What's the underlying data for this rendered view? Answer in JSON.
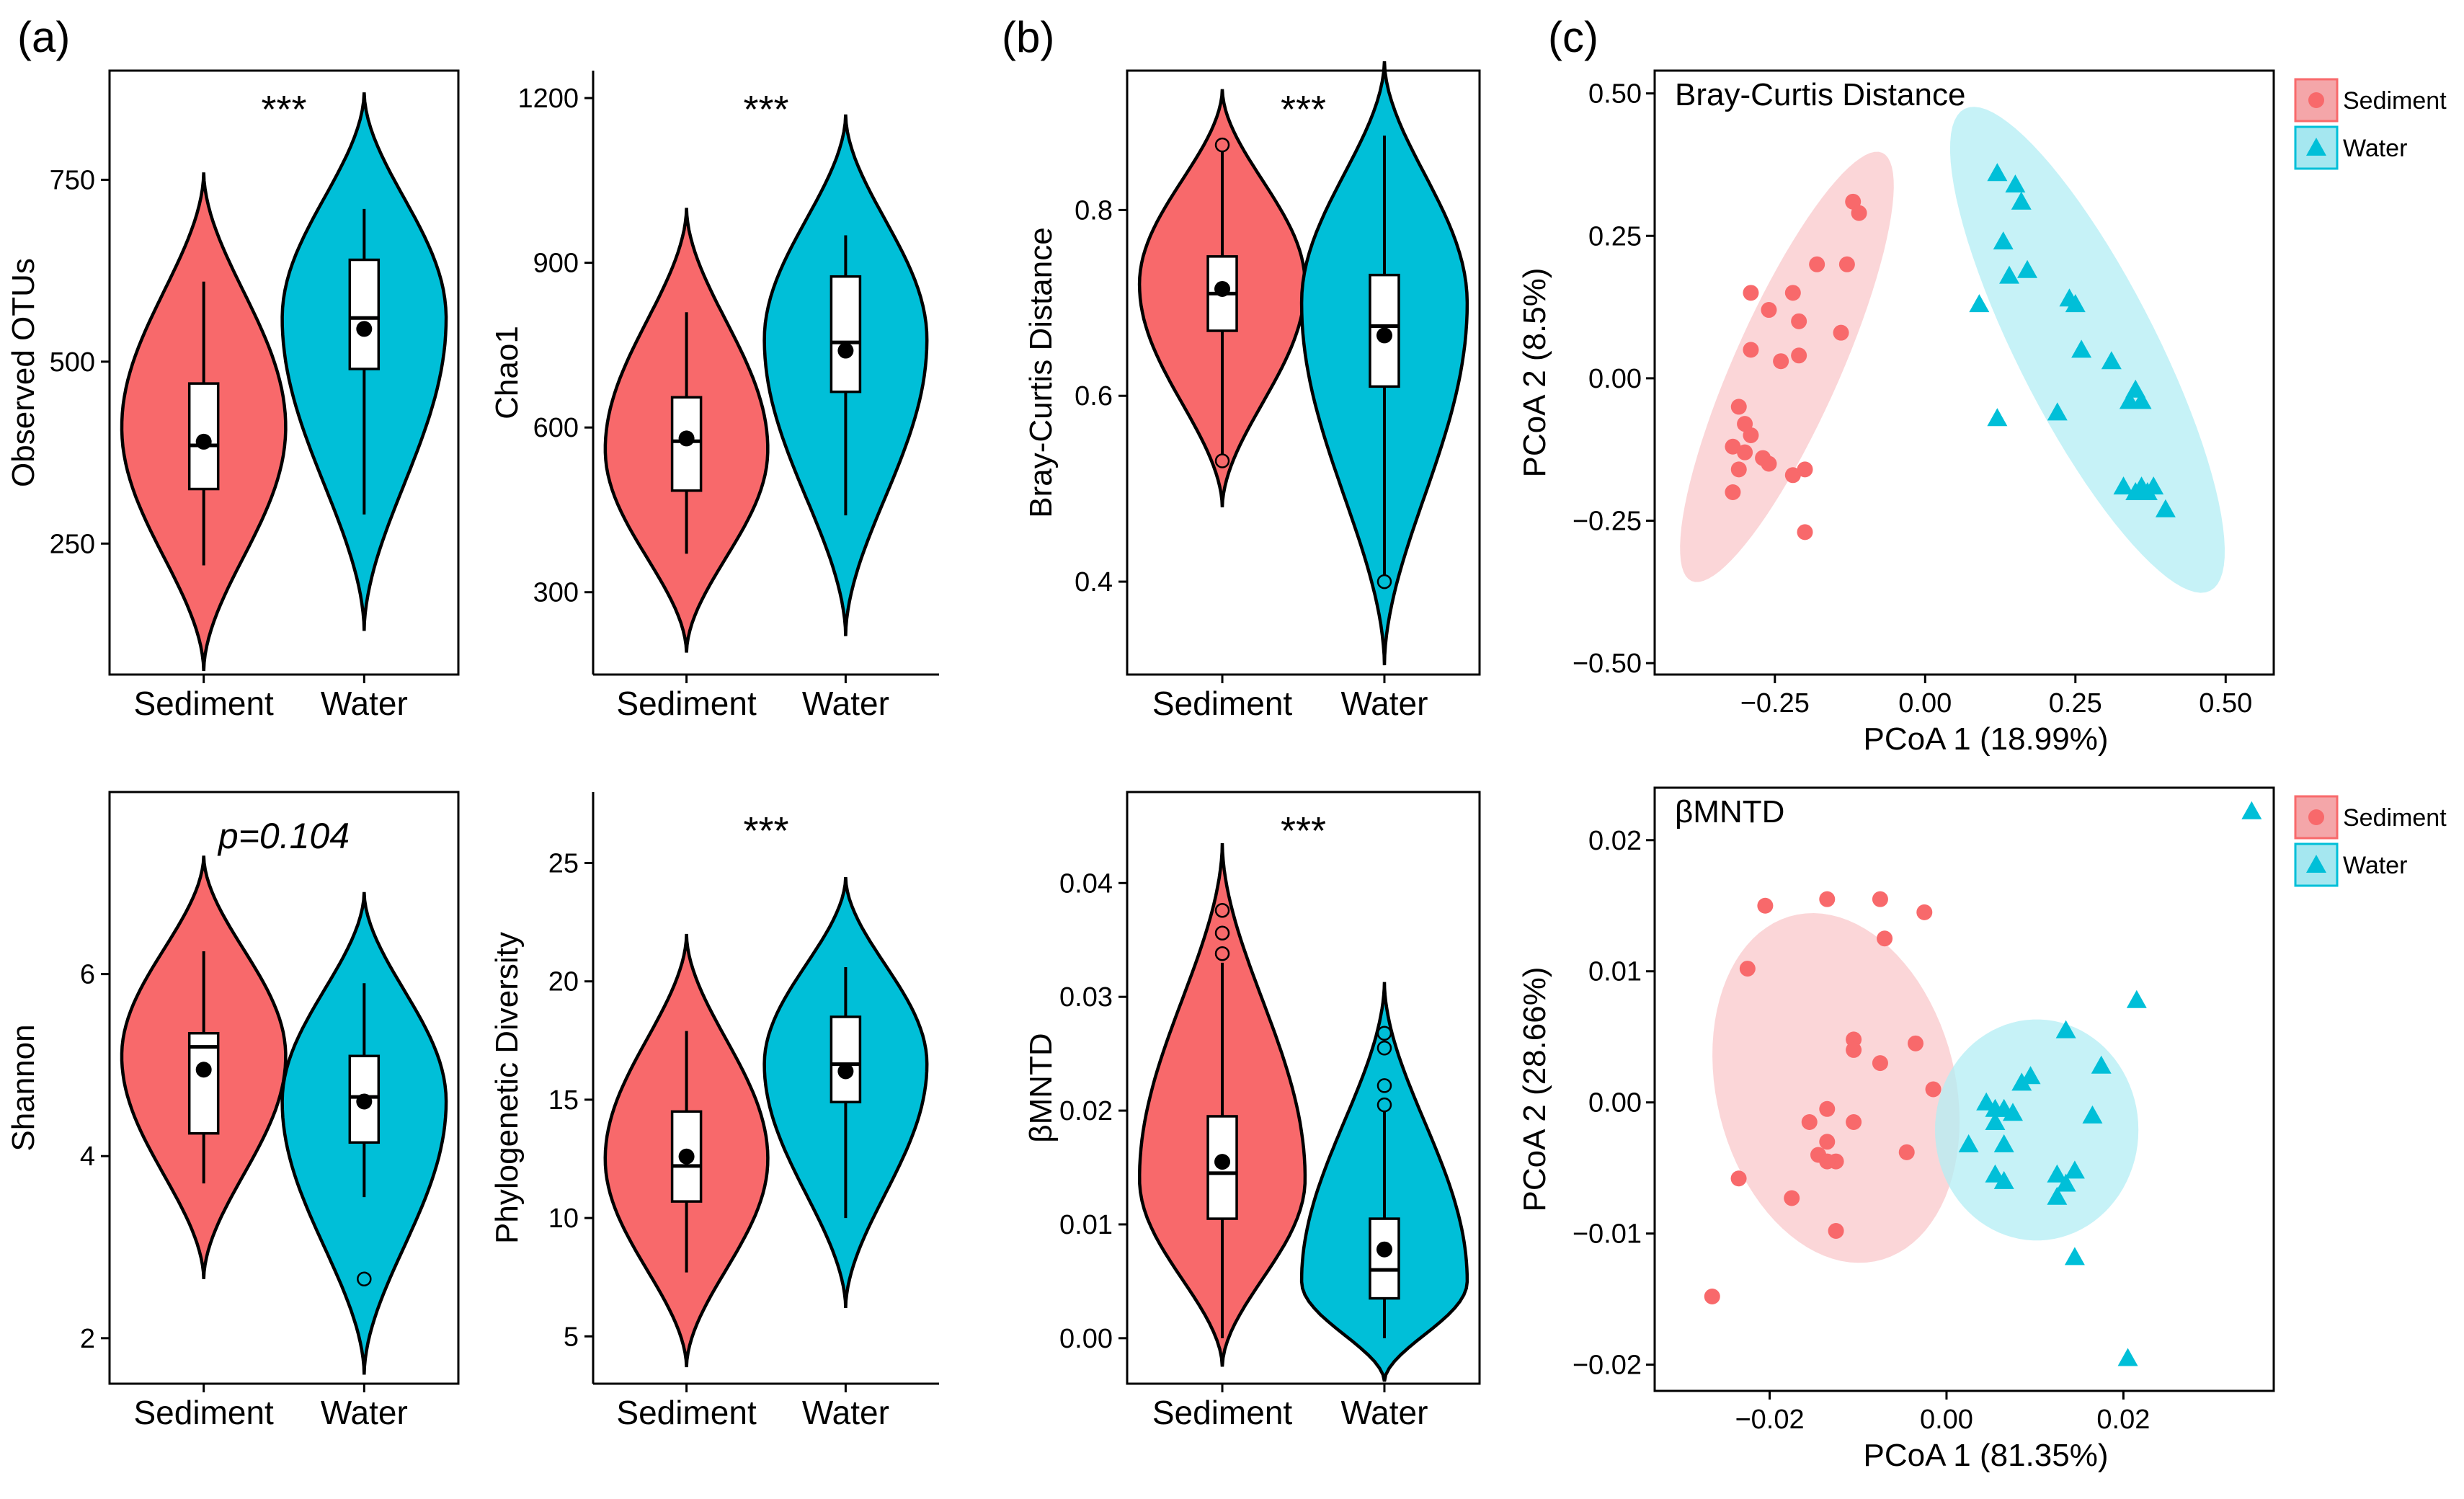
{
  "colors": {
    "sediment": "#F8696B",
    "water": "#00BFD8",
    "sediment_fill": "#F4A6A9",
    "water_fill": "#A5E7F0",
    "sediment_ellipse": "#FAC8CB",
    "water_ellipse": "#B3EDF4"
  },
  "panel_labels": {
    "a": "(a)",
    "b": "(b)",
    "c": "(c)"
  },
  "chart_data": [
    {
      "id": "observed-otus",
      "type": "violin",
      "ylabel": "Observed OTUs",
      "categories": [
        "Sediment",
        "Water"
      ],
      "ylim": [
        70,
        900
      ],
      "yticks": [
        250,
        500,
        750
      ],
      "annotation": "***",
      "series": [
        {
          "name": "Sediment",
          "violin_min": 75,
          "violin_max": 760,
          "violin_peak": 410,
          "q1": 325,
          "median": 385,
          "q3": 470,
          "mean": 390,
          "whisker_low": 220,
          "whisker_high": 610,
          "outliers": []
        },
        {
          "name": "Water",
          "violin_min": 130,
          "violin_max": 870,
          "violin_peak": 560,
          "q1": 490,
          "median": 560,
          "q3": 640,
          "mean": 545,
          "whisker_low": 290,
          "whisker_high": 710,
          "outliers": []
        }
      ]
    },
    {
      "id": "chao1",
      "type": "violin",
      "ylabel": "Chao1",
      "categories": [
        "Sediment",
        "Water"
      ],
      "ylim": [
        150,
        1250
      ],
      "yticks": [
        300,
        600,
        900,
        1200
      ],
      "annotation": "***",
      "series": [
        {
          "name": "Sediment",
          "violin_min": 190,
          "violin_max": 1000,
          "violin_peak": 560,
          "q1": 485,
          "median": 575,
          "q3": 655,
          "mean": 580,
          "whisker_low": 370,
          "whisker_high": 810,
          "outliers": []
        },
        {
          "name": "Water",
          "violin_min": 220,
          "violin_max": 1170,
          "violin_peak": 760,
          "q1": 665,
          "median": 755,
          "q3": 875,
          "mean": 740,
          "whisker_low": 440,
          "whisker_high": 950,
          "outliers": []
        }
      ]
    },
    {
      "id": "shannon",
      "type": "violin",
      "ylabel": "Shannon",
      "categories": [
        "Sediment",
        "Water"
      ],
      "ylim": [
        1.5,
        8
      ],
      "yticks": [
        2,
        4,
        6
      ],
      "annotation": "p=0.104",
      "series": [
        {
          "name": "Sediment",
          "violin_min": 2.65,
          "violin_max": 7.3,
          "violin_peak": 5.1,
          "q1": 4.25,
          "median": 5.2,
          "q3": 5.35,
          "mean": 4.95,
          "whisker_low": 3.7,
          "whisker_high": 6.25,
          "outliers": []
        },
        {
          "name": "Water",
          "violin_min": 1.6,
          "violin_max": 6.9,
          "violin_peak": 4.6,
          "q1": 4.15,
          "median": 4.65,
          "q3": 5.1,
          "mean": 4.6,
          "whisker_low": 3.55,
          "whisker_high": 5.9,
          "outliers": [
            2.65
          ]
        }
      ]
    },
    {
      "id": "phylogenetic-diversity",
      "type": "violin",
      "ylabel": "Phylogenetic Diversity",
      "categories": [
        "Sediment",
        "Water"
      ],
      "ylim": [
        3,
        28
      ],
      "yticks": [
        5,
        10,
        15,
        20,
        25
      ],
      "annotation": "***",
      "series": [
        {
          "name": "Sediment",
          "violin_min": 3.7,
          "violin_max": 22,
          "violin_peak": 12.5,
          "q1": 10.7,
          "median": 12.2,
          "q3": 14.5,
          "mean": 12.6,
          "whisker_low": 7.7,
          "whisker_high": 17.9,
          "outliers": []
        },
        {
          "name": "Water",
          "violin_min": 6.2,
          "violin_max": 24.4,
          "violin_peak": 16.5,
          "q1": 14.9,
          "median": 16.5,
          "q3": 18.5,
          "mean": 16.2,
          "whisker_low": 10,
          "whisker_high": 20.6,
          "outliers": []
        }
      ]
    },
    {
      "id": "bray-curtis-violin",
      "type": "violin",
      "ylabel": "Bray-Curtis Distance",
      "categories": [
        "Sediment",
        "Water"
      ],
      "ylim": [
        0.3,
        0.95
      ],
      "yticks": [
        0.4,
        0.6,
        0.8
      ],
      "annotation": "***",
      "series": [
        {
          "name": "Sediment",
          "violin_min": 0.48,
          "violin_max": 0.93,
          "violin_peak": 0.72,
          "q1": 0.67,
          "median": 0.71,
          "q3": 0.75,
          "mean": 0.715,
          "whisker_low": 0.535,
          "whisker_high": 0.87,
          "outliers": [
            0.53,
            0.87
          ]
        },
        {
          "name": "Water",
          "violin_min": 0.31,
          "violin_max": 0.96,
          "violin_peak": 0.7,
          "q1": 0.61,
          "median": 0.675,
          "q3": 0.73,
          "mean": 0.665,
          "whisker_low": 0.4,
          "whisker_high": 0.88,
          "outliers": [
            0.4
          ]
        }
      ]
    },
    {
      "id": "bmntd-violin",
      "type": "violin",
      "ylabel": "βMNTD",
      "categories": [
        "Sediment",
        "Water"
      ],
      "ylim": [
        -0.004,
        0.048
      ],
      "yticks": [
        0,
        0.01,
        0.02,
        0.03,
        0.04
      ],
      "ytick_labels": [
        "0.00",
        "0.01",
        "0.02",
        "0.03",
        "0.04"
      ],
      "annotation": "***",
      "series": [
        {
          "name": "Sediment",
          "violin_min": -0.0025,
          "violin_max": 0.0435,
          "violin_peak": 0.014,
          "q1": 0.0105,
          "median": 0.0145,
          "q3": 0.0195,
          "mean": 0.0155,
          "whisker_low": 0,
          "whisker_high": 0.033,
          "outliers": [
            0.0338,
            0.0356,
            0.0376
          ]
        },
        {
          "name": "Water",
          "violin_min": -0.0038,
          "violin_max": 0.0313,
          "violin_peak": 0.005,
          "q1": 0.0035,
          "median": 0.006,
          "q3": 0.0105,
          "mean": 0.0078,
          "whisker_low": 0,
          "whisker_high": 0.02,
          "outliers": [
            0.0205,
            0.0222,
            0.0255,
            0.0268
          ]
        }
      ]
    },
    {
      "id": "pcoa-bray-curtis",
      "type": "scatter",
      "title": "Bray-Curtis Distance",
      "xlabel": "PCoA 1 (18.99%)",
      "ylabel": "PCoA 2 (8.5%)",
      "xlim": [
        -0.45,
        0.58
      ],
      "ylim": [
        -0.52,
        0.54
      ],
      "xticks": [
        -0.25,
        0,
        0.25,
        0.5
      ],
      "xtick_labels": [
        "−0.25",
        "0.00",
        "0.25",
        "0.50"
      ],
      "yticks": [
        -0.5,
        -0.25,
        0,
        0.25,
        0.5
      ],
      "ytick_labels": [
        "−0.50",
        "−0.25",
        "0.00",
        "0.25",
        "0.50"
      ],
      "legend": [
        "Sediment",
        "Water"
      ],
      "series": [
        {
          "name": "Sediment",
          "marker": "circle",
          "points": [
            [
              -0.12,
              0.31
            ],
            [
              -0.11,
              0.29
            ],
            [
              -0.18,
              0.2
            ],
            [
              -0.13,
              0.2
            ],
            [
              -0.29,
              0.15
            ],
            [
              -0.22,
              0.15
            ],
            [
              -0.21,
              0.1
            ],
            [
              -0.26,
              0.12
            ],
            [
              -0.14,
              0.08
            ],
            [
              -0.29,
              0.05
            ],
            [
              -0.24,
              0.03
            ],
            [
              -0.21,
              0.04
            ],
            [
              -0.31,
              -0.05
            ],
            [
              -0.3,
              -0.08
            ],
            [
              -0.29,
              -0.1
            ],
            [
              -0.32,
              -0.12
            ],
            [
              -0.31,
              -0.16
            ],
            [
              -0.3,
              -0.13
            ],
            [
              -0.27,
              -0.14
            ],
            [
              -0.26,
              -0.15
            ],
            [
              -0.22,
              -0.17
            ],
            [
              -0.2,
              -0.16
            ],
            [
              -0.32,
              -0.2
            ],
            [
              -0.2,
              -0.27
            ]
          ]
        },
        {
          "name": "Water",
          "marker": "triangle",
          "points": [
            [
              0.12,
              0.36
            ],
            [
              0.15,
              0.34
            ],
            [
              0.16,
              0.31
            ],
            [
              0.13,
              0.24
            ],
            [
              0.17,
              0.19
            ],
            [
              0.14,
              0.18
            ],
            [
              0.09,
              0.13
            ],
            [
              0.24,
              0.14
            ],
            [
              0.25,
              0.13
            ],
            [
              0.26,
              0.05
            ],
            [
              0.31,
              0.03
            ],
            [
              0.35,
              -0.02
            ],
            [
              0.34,
              -0.04
            ],
            [
              0.36,
              -0.04
            ],
            [
              0.22,
              -0.06
            ],
            [
              0.12,
              -0.07
            ],
            [
              0.33,
              -0.19
            ],
            [
              0.35,
              -0.2
            ],
            [
              0.36,
              -0.19
            ],
            [
              0.38,
              -0.19
            ],
            [
              0.37,
              -0.2
            ],
            [
              0.4,
              -0.23
            ]
          ]
        }
      ],
      "ellipses": [
        {
          "name": "Sediment",
          "center": [
            -0.23,
            0.02
          ],
          "rx": 0.39,
          "ry": 0.088,
          "angle_deg": 66
        },
        {
          "name": "Water",
          "center": [
            0.27,
            0.05
          ],
          "rx": 0.45,
          "ry": 0.115,
          "angle_deg": -63
        }
      ]
    },
    {
      "id": "pcoa-bmntd",
      "type": "scatter",
      "title": "βMNTD",
      "xlabel": "PCoA 1 (81.35%)",
      "ylabel": "PCoA 2 (28.66%)",
      "xlim": [
        -0.033,
        0.037
      ],
      "ylim": [
        -0.022,
        0.024
      ],
      "xticks": [
        -0.02,
        0,
        0.02
      ],
      "xtick_labels": [
        "−0.02",
        "0.00",
        "0.02"
      ],
      "yticks": [
        -0.02,
        -0.01,
        0,
        0.01,
        0.02
      ],
      "ytick_labels": [
        "−0.02",
        "−0.01",
        "0.00",
        "0.01",
        "0.02"
      ],
      "legend": [
        "Sediment",
        "Water"
      ],
      "series": [
        {
          "name": "Sediment",
          "marker": "circle",
          "points": [
            [
              -0.0205,
              0.015
            ],
            [
              -0.0135,
              0.0155
            ],
            [
              -0.0075,
              0.0155
            ],
            [
              -0.0025,
              0.0145
            ],
            [
              -0.007,
              0.0125
            ],
            [
              -0.0225,
              0.0102
            ],
            [
              -0.0105,
              0.0048
            ],
            [
              -0.0105,
              0.004
            ],
            [
              -0.0035,
              0.0045
            ],
            [
              -0.0075,
              0.003
            ],
            [
              -0.0015,
              0.001
            ],
            [
              -0.0135,
              -0.0005
            ],
            [
              -0.0155,
              -0.0015
            ],
            [
              -0.0105,
              -0.0015
            ],
            [
              -0.0135,
              -0.003
            ],
            [
              -0.0145,
              -0.004
            ],
            [
              -0.0125,
              -0.0045
            ],
            [
              -0.0135,
              -0.0045
            ],
            [
              -0.0045,
              -0.0038
            ],
            [
              -0.0235,
              -0.0058
            ],
            [
              -0.0175,
              -0.0073
            ],
            [
              -0.0125,
              -0.0098
            ],
            [
              -0.0265,
              -0.0148
            ]
          ]
        },
        {
          "name": "Water",
          "marker": "triangle",
          "points": [
            [
              0.0215,
              0.0078
            ],
            [
              0.0135,
              0.0055
            ],
            [
              0.0175,
              0.0028
            ],
            [
              0.0095,
              0.002
            ],
            [
              0.0085,
              0.0015
            ],
            [
              0.0045,
              0
            ],
            [
              0.0055,
              -0.0005
            ],
            [
              0.0065,
              -0.0005
            ],
            [
              0.0075,
              -0.0008
            ],
            [
              0.0055,
              -0.0015
            ],
            [
              0.0165,
              -0.001
            ],
            [
              0.0025,
              -0.0032
            ],
            [
              0.0065,
              -0.0032
            ],
            [
              0.0145,
              -0.0052
            ],
            [
              0.0125,
              -0.0055
            ],
            [
              0.0135,
              -0.0062
            ],
            [
              0.0055,
              -0.0055
            ],
            [
              0.0065,
              -0.006
            ],
            [
              0.0125,
              -0.0072
            ],
            [
              0.0145,
              -0.0118
            ],
            [
              0.0205,
              -0.0195
            ],
            [
              0.0345,
              0.0222
            ]
          ]
        }
      ],
      "ellipses": [
        {
          "name": "Sediment",
          "center": [
            -0.0125,
            0.0011
          ],
          "rx": 0.0135,
          "ry": 0.0201,
          "angle_deg": 14
        },
        {
          "name": "Water",
          "center": [
            0.0102,
            -0.0021
          ],
          "rx": 0.0115,
          "ry": 0.0125,
          "angle_deg": 0
        }
      ]
    }
  ]
}
